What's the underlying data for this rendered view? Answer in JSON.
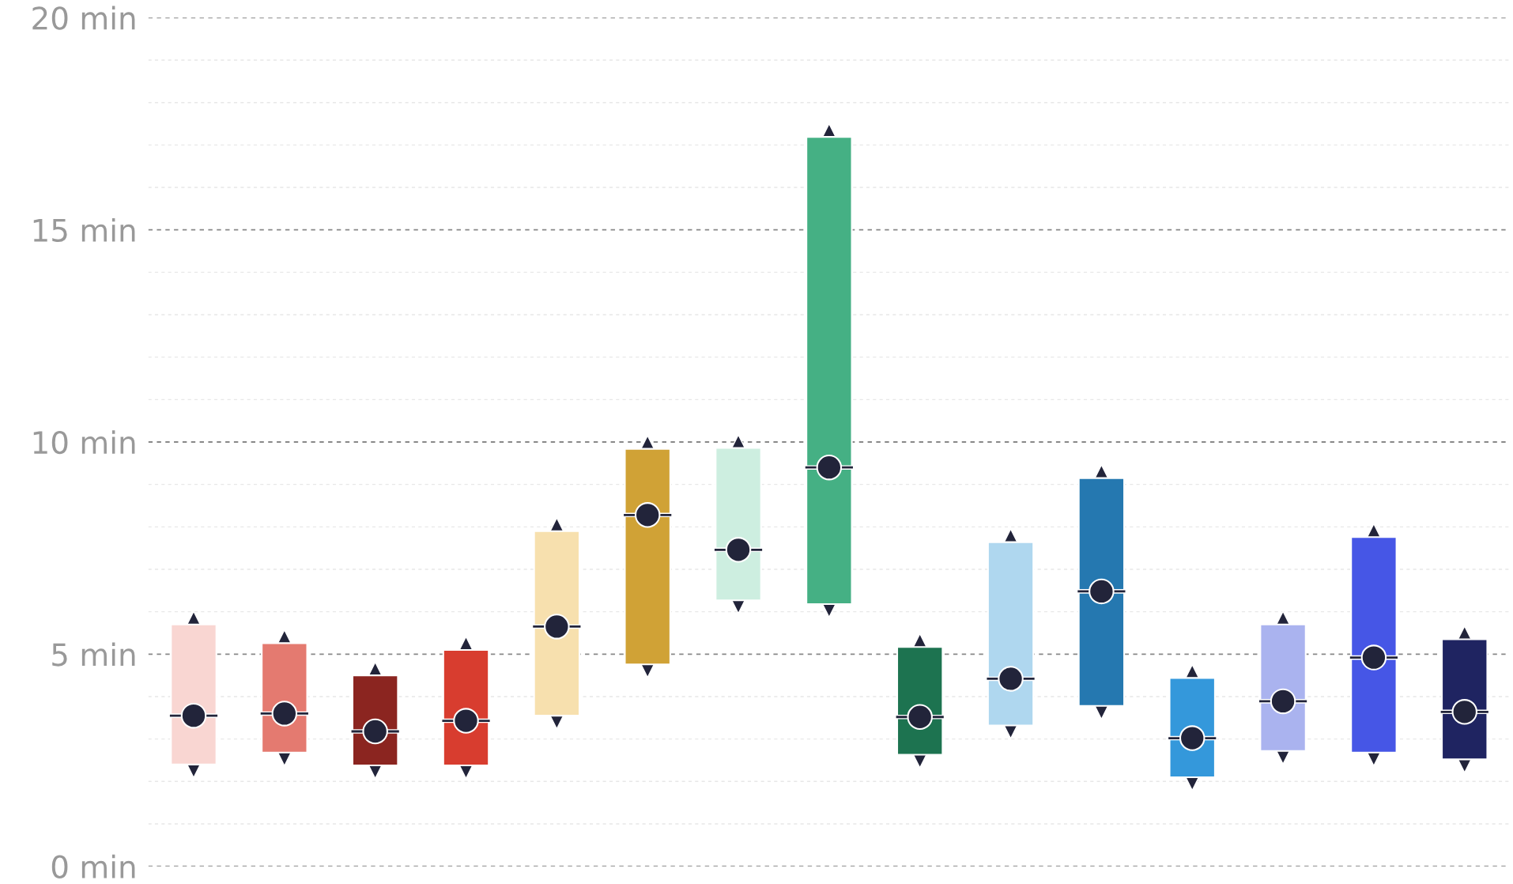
{
  "chart_data": {
    "type": "bar",
    "categories": [
      null,
      null,
      null,
      null,
      null,
      null,
      null,
      null,
      null,
      null,
      null,
      null,
      null,
      null,
      null
    ],
    "series": [
      {
        "colors": [
          "#f9d6d2",
          "#e47a70",
          "#8b2520",
          "#d83d2f",
          "#f7e0ae",
          "#d0a236",
          "#cdeee0",
          "#45b084",
          "#1d7350",
          "#afd7ef",
          "#2578b0",
          "#3498db",
          "#aab3ef",
          "#4656e6",
          "#1f2461"
        ],
        "base": [
          2.4,
          2.68,
          2.38,
          2.38,
          3.55,
          4.76,
          6.27,
          6.18,
          2.63,
          3.32,
          3.78,
          2.1,
          2.72,
          2.68,
          2.52
        ],
        "values": [
          3.3,
          2.58,
          2.12,
          2.72,
          4.35,
          5.08,
          3.59,
          11.01,
          2.54,
          4.32,
          5.37,
          2.34,
          2.98,
          5.08,
          2.83
        ]
      },
      {
        "type": "scatter",
        "color": "#22243a",
        "marker": "circle",
        "values": [
          3.55,
          3.6,
          3.18,
          3.43,
          5.65,
          8.28,
          7.46,
          9.4,
          3.52,
          4.42,
          6.48,
          3.02,
          3.89,
          4.92,
          3.64
        ]
      }
    ],
    "ylim": [
      0,
      20
    ],
    "yticks": [
      {
        "value": 0,
        "label": "0 min"
      },
      {
        "value": 1,
        "label": null
      },
      {
        "value": 2,
        "label": null
      },
      {
        "value": 3,
        "label": null
      },
      {
        "value": 4,
        "label": null
      },
      {
        "value": 5,
        "label": "5 min"
      },
      {
        "value": 6,
        "label": null
      },
      {
        "value": 7,
        "label": null
      },
      {
        "value": 8,
        "label": null
      },
      {
        "value": 9,
        "label": null
      },
      {
        "value": 10,
        "label": "10 min"
      },
      {
        "value": 11,
        "label": null
      },
      {
        "value": 12,
        "label": null
      },
      {
        "value": 13,
        "label": null
      },
      {
        "value": 14,
        "label": null
      },
      {
        "value": 15,
        "label": "15 min"
      },
      {
        "value": 16,
        "label": null
      },
      {
        "value": 17,
        "label": null
      },
      {
        "value": 18,
        "label": null
      },
      {
        "value": 19,
        "label": null
      },
      {
        "value": 20,
        "label": "20 min"
      }
    ],
    "grid": "y",
    "legend": false
  }
}
